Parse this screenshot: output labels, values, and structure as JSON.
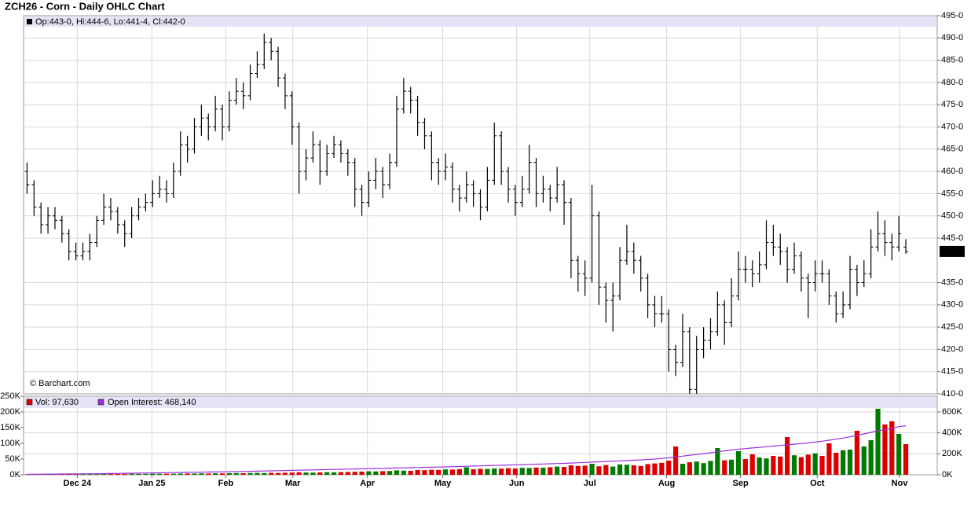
{
  "chart_data": [
    {
      "type": "ohlc",
      "title": "ZCH26 - Corn - Daily OHLC Chart",
      "header": "Op:443-0, Hi:444-6, Lo:441-4, Cl:442-0",
      "watermark": "© Barchart.com",
      "last_label": "442-0",
      "color": "#000000",
      "open": [
        460,
        457,
        452,
        448,
        450,
        449,
        446,
        442,
        441,
        442,
        444,
        449,
        452,
        451,
        448,
        446,
        450,
        452,
        453,
        455,
        456,
        455,
        460,
        466,
        465,
        470,
        472,
        470,
        474,
        470,
        476,
        478,
        477,
        482,
        484,
        489,
        487,
        481,
        477,
        470,
        460,
        463,
        466,
        460,
        464,
        466,
        464,
        462,
        456,
        453,
        458,
        460,
        457,
        462,
        474,
        478,
        476,
        471,
        468,
        462,
        460,
        461,
        456,
        454,
        457,
        455,
        452,
        458,
        468,
        460,
        456,
        453,
        456,
        462,
        455,
        456,
        454,
        457,
        453,
        440,
        437,
        436,
        450,
        434,
        431,
        432,
        440,
        442,
        440,
        436,
        430,
        428,
        428,
        420,
        417,
        424,
        411,
        420,
        422,
        424,
        430,
        426,
        432,
        438,
        438,
        437,
        439,
        444,
        443,
        442,
        438,
        441,
        436,
        435,
        437,
        437,
        432,
        428,
        430,
        438,
        435,
        437,
        443,
        446,
        444,
        443,
        443
      ],
      "high": [
        462,
        458,
        453,
        452,
        452,
        450,
        447,
        444,
        444,
        446,
        450,
        455,
        454,
        452,
        449,
        452,
        454,
        455,
        458,
        459,
        458,
        462,
        469,
        468,
        472,
        475,
        473,
        477,
        475,
        478,
        481,
        480,
        484,
        487,
        491,
        490,
        488,
        482,
        478,
        471,
        465,
        469,
        467,
        466,
        468,
        467,
        465,
        463,
        457,
        460,
        463,
        461,
        464,
        477,
        481,
        479,
        477,
        472,
        469,
        463,
        464,
        462,
        457,
        460,
        458,
        456,
        461,
        471,
        469,
        461,
        457,
        459,
        466,
        463,
        459,
        457,
        461,
        458,
        454,
        441,
        440,
        457,
        451,
        435,
        435,
        443,
        448,
        444,
        441,
        437,
        432,
        432,
        429,
        421,
        428,
        425,
        423,
        425,
        427,
        433,
        431,
        436,
        442,
        441,
        440,
        442,
        449,
        448,
        446,
        443,
        444,
        442,
        437,
        440,
        440,
        438,
        433,
        433,
        441,
        439,
        440,
        447,
        451,
        449,
        446,
        450,
        444.75
      ],
      "low": [
        455,
        450,
        446,
        446,
        447,
        444,
        440,
        440,
        440,
        440,
        443,
        448,
        449,
        446,
        443,
        445,
        449,
        451,
        452,
        454,
        453,
        454,
        459,
        462,
        464,
        468,
        467,
        469,
        467,
        469,
        475,
        474,
        476,
        481,
        483,
        485,
        479,
        474,
        466,
        455,
        458,
        462,
        457,
        459,
        463,
        462,
        459,
        452,
        450,
        452,
        456,
        454,
        456,
        461,
        473,
        473,
        468,
        465,
        458,
        457,
        458,
        453,
        451,
        453,
        452,
        449,
        451,
        457,
        457,
        453,
        450,
        452,
        455,
        452,
        453,
        451,
        453,
        448,
        436,
        433,
        432,
        435,
        430,
        426,
        424,
        431,
        439,
        437,
        433,
        427,
        425,
        426,
        415,
        414,
        416,
        410,
        410,
        418,
        420,
        423,
        421,
        425,
        431,
        435,
        434,
        435,
        438,
        441,
        439,
        435,
        437,
        433,
        427,
        433,
        435,
        430,
        426,
        427,
        429,
        432,
        434,
        436,
        442,
        441,
        440,
        442,
        441.5
      ],
      "close": [
        457,
        452,
        448,
        450,
        449,
        446,
        442,
        441,
        442,
        444,
        449,
        452,
        451,
        448,
        446,
        450,
        452,
        453,
        455,
        456,
        455,
        460,
        466,
        465,
        470,
        472,
        470,
        474,
        470,
        476,
        478,
        477,
        482,
        484,
        489,
        487,
        481,
        477,
        470,
        460,
        463,
        466,
        460,
        464,
        466,
        464,
        462,
        456,
        453,
        458,
        460,
        457,
        462,
        474,
        478,
        476,
        471,
        468,
        462,
        460,
        461,
        456,
        454,
        457,
        455,
        452,
        458,
        468,
        460,
        456,
        453,
        456,
        462,
        455,
        456,
        454,
        457,
        453,
        440,
        437,
        436,
        450,
        434,
        431,
        432,
        440,
        442,
        440,
        436,
        430,
        428,
        428,
        420,
        417,
        424,
        411,
        420,
        422,
        424,
        430,
        426,
        432,
        438,
        438,
        437,
        439,
        444,
        443,
        442,
        438,
        441,
        436,
        435,
        437,
        437,
        432,
        428,
        430,
        438,
        435,
        437,
        443,
        446,
        444,
        443,
        446,
        442
      ],
      "ylim": [
        410,
        495
      ],
      "yticks": [
        {
          "value": 410,
          "label": "410-0"
        },
        {
          "value": 415,
          "label": "415-0"
        },
        {
          "value": 420,
          "label": "420-0"
        },
        {
          "value": 425,
          "label": "425-0"
        },
        {
          "value": 430,
          "label": "430-0"
        },
        {
          "value": 435,
          "label": "435-0"
        },
        {
          "value": 445,
          "label": "445-0"
        },
        {
          "value": 450,
          "label": "450-0"
        },
        {
          "value": 455,
          "label": "455-0"
        },
        {
          "value": 460,
          "label": "460-0"
        },
        {
          "value": 465,
          "label": "465-0"
        },
        {
          "value": 470,
          "label": "470-0"
        },
        {
          "value": 475,
          "label": "475-0"
        },
        {
          "value": 480,
          "label": "480-0"
        },
        {
          "value": 485,
          "label": "485-0"
        },
        {
          "value": 490,
          "label": "490-0"
        },
        {
          "value": 495,
          "label": "495-0"
        }
      ],
      "grid": true,
      "xlim": [
        -0.5,
        130.5
      ]
    },
    {
      "type": "bar",
      "series": [
        {
          "name": "Vol: 97,630",
          "color": "#dd0000",
          "up_color": "#007a00",
          "values": [
            1500,
            1800,
            1600,
            2000,
            1700,
            2200,
            1900,
            2100,
            2500,
            2300,
            2600,
            2400,
            2800,
            3000,
            2700,
            3200,
            2900,
            3100,
            3500,
            3300,
            3600,
            3400,
            3800,
            4200,
            4000,
            4500,
            4100,
            4800,
            4400,
            5000,
            5200,
            4900,
            5500,
            6000,
            5400,
            6200,
            5800,
            6500,
            7000,
            8000,
            7200,
            6800,
            7500,
            8200,
            7800,
            8500,
            9000,
            9500,
            10000,
            11000,
            10500,
            11500,
            12000,
            14000,
            13000,
            12500,
            15000,
            14500,
            16000,
            15500,
            17000,
            16500,
            18000,
            24000,
            17500,
            19000,
            18500,
            20000,
            19500,
            21000,
            20000,
            22000,
            21500,
            23000,
            22500,
            24000,
            26000,
            25000,
            30000,
            28000,
            29000,
            35000,
            27000,
            31000,
            26000,
            33000,
            32000,
            30000,
            28000,
            34000,
            36000,
            38000,
            45000,
            90000,
            35000,
            40000,
            42000,
            37000,
            44000,
            85000,
            46000,
            48000,
            75000,
            50000,
            65000,
            55000,
            52000,
            60000,
            58000,
            120000,
            62000,
            56000,
            64000,
            68000,
            60000,
            100000,
            70000,
            78000,
            80000,
            140000,
            90000,
            110000,
            210000,
            160000,
            170000,
            130000,
            97630
          ]
        },
        {
          "name": "Open Interest: 468,140",
          "type": "line",
          "axis": "y2",
          "color": "#9b30d9",
          "values": [
            5000,
            5500,
            6000,
            6500,
            7000,
            7500,
            8000,
            8500,
            9000,
            9500,
            10000,
            11000,
            12000,
            13000,
            14000,
            15000,
            16000,
            17000,
            18000,
            19000,
            20000,
            21000,
            22000,
            23000,
            24000,
            25000,
            26000,
            27000,
            28000,
            29000,
            30000,
            31500,
            33000,
            34500,
            36000,
            37500,
            39000,
            40500,
            42000,
            43500,
            45000,
            46500,
            48000,
            49500,
            51000,
            52500,
            54000,
            55500,
            57000,
            58500,
            60000,
            61500,
            63000,
            64500,
            66000,
            67500,
            69000,
            70500,
            72000,
            73500,
            75000,
            77000,
            79000,
            81000,
            83000,
            85000,
            87000,
            89000,
            91000,
            93000,
            95000,
            97000,
            99000,
            101000,
            103000,
            105000,
            107000,
            109000,
            112000,
            115000,
            118000,
            121000,
            124000,
            127000,
            130000,
            133000,
            136000,
            139000,
            142000,
            146000,
            150000,
            156000,
            162000,
            170000,
            178000,
            186000,
            194000,
            202000,
            210000,
            220000,
            228000,
            236000,
            244000,
            250000,
            256000,
            262000,
            268000,
            274000,
            280000,
            286000,
            292000,
            298000,
            304000,
            312000,
            320000,
            330000,
            340000,
            350000,
            362000,
            375000,
            390000,
            405000,
            420000,
            430000,
            440000,
            460000,
            468140
          ]
        }
      ],
      "ylim": [
        0,
        250000
      ],
      "yticks": [
        {
          "value": 0,
          "label": "0K"
        },
        {
          "value": 50000,
          "label": "50K"
        },
        {
          "value": 100000,
          "label": "100K"
        },
        {
          "value": 150000,
          "label": "150K"
        },
        {
          "value": 200000,
          "label": "200K"
        },
        {
          "value": 250000,
          "label": "250K"
        }
      ],
      "y2lim": [
        0,
        750000
      ],
      "y2ticks": [
        {
          "value": 0,
          "label": "0K"
        },
        {
          "value": 200000,
          "label": "200K"
        },
        {
          "value": 400000,
          "label": "400K"
        },
        {
          "value": 600000,
          "label": "600K"
        }
      ],
      "xlim": [
        -0.5,
        130.5
      ],
      "xticks": [
        {
          "value": 7.2,
          "label": "Dec 24"
        },
        {
          "value": 17.9,
          "label": "Jan 25"
        },
        {
          "value": 28.5,
          "label": "Feb"
        },
        {
          "value": 38.1,
          "label": "Mar"
        },
        {
          "value": 48.8,
          "label": "Apr"
        },
        {
          "value": 59.6,
          "label": "May"
        },
        {
          "value": 70.2,
          "label": "Jun"
        },
        {
          "value": 80.7,
          "label": "Jul"
        },
        {
          "value": 91.7,
          "label": "Aug"
        },
        {
          "value": 102.3,
          "label": "Sep"
        },
        {
          "value": 113.3,
          "label": "Oct"
        },
        {
          "value": 125.1,
          "label": "Nov"
        }
      ],
      "grid": true
    }
  ]
}
